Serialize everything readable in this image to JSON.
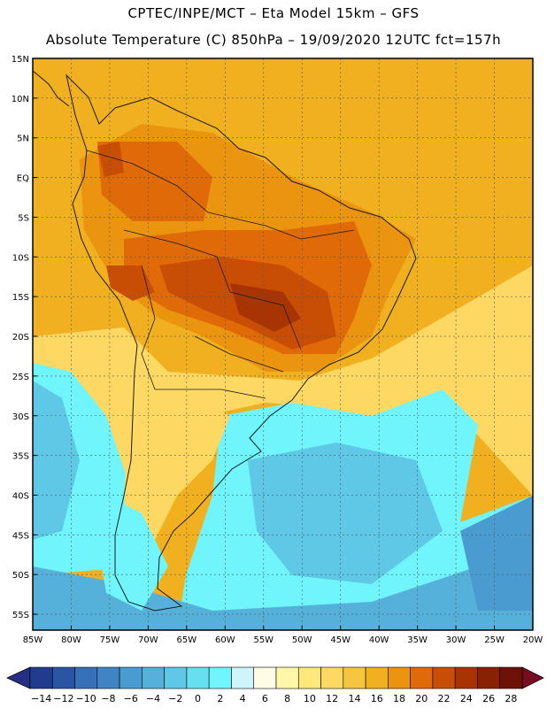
{
  "header": {
    "line1": "CPTEC/INPE/MCT –   Eta Model 15km – GFS",
    "line2": "Absolute Temperature (C) 850hPa – 19/09/2020 12UTC fct=157h"
  },
  "axes": {
    "lat_labels": [
      "15N",
      "10N",
      "5N",
      "EQ",
      "5S",
      "10S",
      "15S",
      "20S",
      "25S",
      "30S",
      "35S",
      "40S",
      "45S",
      "50S",
      "55S"
    ],
    "lon_labels": [
      "85W",
      "80W",
      "75W",
      "70W",
      "65W",
      "60W",
      "55W",
      "50W",
      "45W",
      "40W",
      "35W",
      "30W",
      "25W",
      "20W"
    ],
    "lat_range": [
      15,
      -57
    ],
    "lon_range": [
      -85,
      -20
    ]
  },
  "colorbar": {
    "ticks": [
      "-14",
      "-12",
      "-10",
      "-8",
      "-6",
      "-4",
      "-2",
      "0",
      "2",
      "4",
      "6",
      "8",
      "10",
      "12",
      "14",
      "16",
      "18",
      "20",
      "22",
      "24",
      "26",
      "28"
    ],
    "colors": [
      "#1f3c8f",
      "#2a55a5",
      "#3570b8",
      "#3f85c4",
      "#4a9bcf",
      "#56b1da",
      "#5fc8e6",
      "#66e0f0",
      "#6ff5fb",
      "#cff4fb",
      "#fffce6",
      "#fff7a8",
      "#ffe87c",
      "#fdd862",
      "#f6c640",
      "#f0b020",
      "#ea9410",
      "#e06a08",
      "#c84e06",
      "#a83404",
      "#8a2004",
      "#6e1208"
    ],
    "under_color": "#262f85",
    "over_color": "#7a0c22"
  },
  "map_colors": {
    "ocean_north": "#f0b020",
    "ocean_mid": "#fdd862",
    "ocean_cool": "#6ff5fb",
    "ocean_cold": "#5fc8e6",
    "ocean_coldest": "#4a9bcf",
    "land_hot": "#ea9410",
    "land_hotter": "#e06a08",
    "land_hottest": "#c84e06",
    "core": "#a83404",
    "coast_line": "#1a1a1a"
  }
}
